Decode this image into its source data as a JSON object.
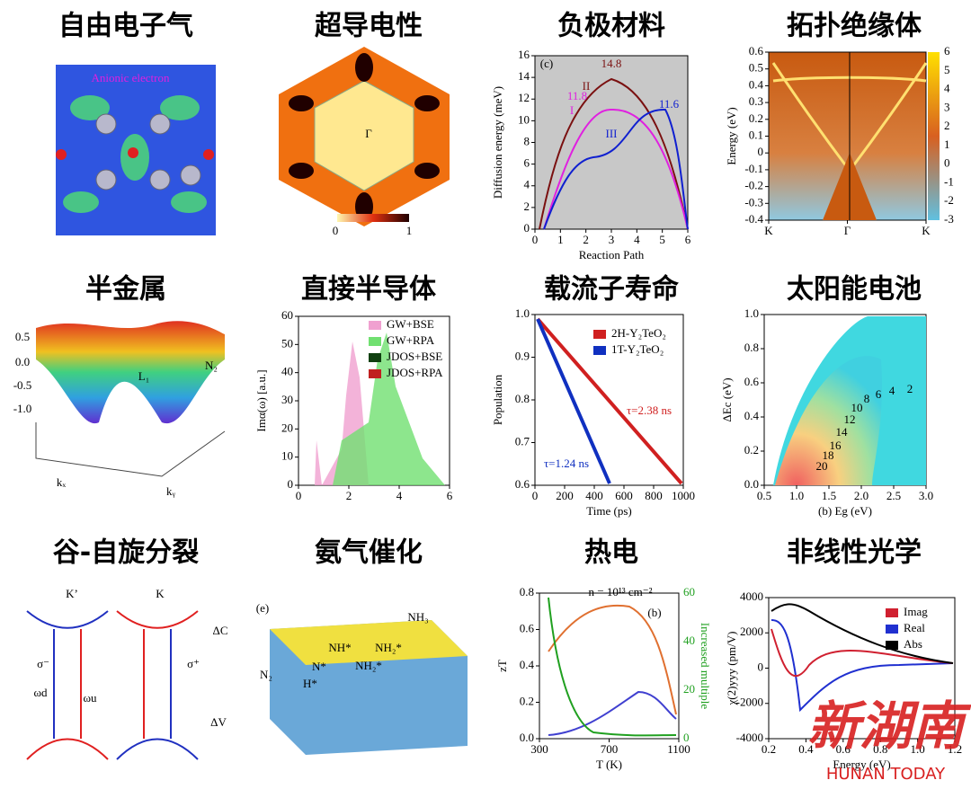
{
  "panels": [
    {
      "title": "自由电子气",
      "labels": [
        "Anionic electron"
      ]
    },
    {
      "title": "超导电性",
      "labels": [
        "Γ",
        "0",
        "1"
      ]
    },
    {
      "title": "负极材料",
      "yticks": [
        "16",
        "14",
        "12",
        "10",
        "8",
        "6",
        "4",
        "2",
        "0"
      ],
      "xticks": [
        "0",
        "1",
        "2",
        "3",
        "4",
        "5",
        "6"
      ],
      "ylabel": "Diffusion energy (meV)",
      "xlabel": "Reaction Path",
      "labels": [
        "(c)",
        "14.8",
        "11.8",
        "11.6",
        "II",
        "I",
        "III"
      ]
    },
    {
      "title": "拓扑绝缘体",
      "yticks": [
        "0.6",
        "0.5",
        "0.4",
        "0.3",
        "0.2",
        "0.1",
        "0",
        "-0.1",
        "-0.2",
        "-0.3",
        "-0.4"
      ],
      "y2ticks": [
        "6",
        "5",
        "4",
        "3",
        "2",
        "1",
        "0",
        "-1",
        "-2",
        "-3"
      ],
      "xticks": [
        "K",
        "Γ",
        "K"
      ],
      "ylabel": "Energy (eV)"
    },
    {
      "title": "半金属",
      "labels": [
        "0.5",
        "0.0",
        "-0.5",
        "-1.0",
        "L₁",
        "N₂",
        "kₓ",
        "kᵧ"
      ]
    },
    {
      "title": "直接半导体",
      "yticks": [
        "60",
        "50",
        "40",
        "30",
        "20",
        "10",
        "0"
      ],
      "xticks": [
        "0",
        "2",
        "4",
        "6"
      ],
      "ylabel": "Imα(ω) [a.u.]",
      "legend": [
        "GW+BSE",
        "GW+RPA",
        "JDOS+BSE",
        "JDOS+RPA"
      ]
    },
    {
      "title": "载流子寿命",
      "yticks": [
        "1.0",
        "0.9",
        "0.8",
        "0.7",
        "0.6"
      ],
      "xticks": [
        "0",
        "200",
        "400",
        "600",
        "800",
        "1000"
      ],
      "ylabel": "Population",
      "xlabel": "Time (ps)",
      "legend": [
        "2H-Y₂TeO₂",
        "1T-Y₂TeO₂"
      ],
      "labels": [
        "τ=2.38 ns",
        "τ=1.24 ns"
      ]
    },
    {
      "title": "太阳能电池",
      "yticks": [
        "1.0",
        "0.8",
        "0.6",
        "0.4",
        "0.2",
        "0.0"
      ],
      "xticks": [
        "0.5",
        "1.0",
        "1.5",
        "2.0",
        "2.5",
        "3.0"
      ],
      "ylabel": "ΔEc (eV)",
      "xlabel": "(b) Eg (eV)",
      "labels": [
        "2",
        "4",
        "6",
        "8",
        "10",
        "12",
        "14",
        "16",
        "18",
        "20"
      ]
    },
    {
      "title": "谷-自旋分裂",
      "labels": [
        "K’",
        "K",
        "ΔC",
        "σ⁻",
        "σ⁺",
        "ωd",
        "ωu",
        "ΔV"
      ]
    },
    {
      "title": "氨气催化",
      "labels": [
        "(e)",
        "NH₃",
        "NH₂*",
        "NH*",
        "NH₂*",
        "N*",
        "H*",
        "N₂"
      ]
    },
    {
      "title": "热电",
      "yticks": [
        "0.8",
        "0.6",
        "0.4",
        "0.2",
        "0.0"
      ],
      "y2ticks": [
        "60",
        "40",
        "20",
        "0"
      ],
      "xticks": [
        "300",
        "700",
        "1100"
      ],
      "ylabel": "zT",
      "y2label": "Increased multiple",
      "xlabel": "T (K)",
      "labels": [
        "n = 10¹³ cm⁻²",
        "(b)"
      ]
    },
    {
      "title": "非线性光学",
      "yticks": [
        "4000",
        "2000",
        "0",
        "-2000",
        "-4000"
      ],
      "xticks": [
        "0.2",
        "0.4",
        "0.6",
        "0.8",
        "1.0",
        "1.2"
      ],
      "ylabel": "χ(2)yyy (pm/V)",
      "xlabel": "Energy (eV)",
      "legend": [
        "Imag",
        "Real",
        "Abs"
      ]
    }
  ],
  "watermark": {
    "name": "新湖南",
    "sub": "HUNAN TODAY"
  }
}
